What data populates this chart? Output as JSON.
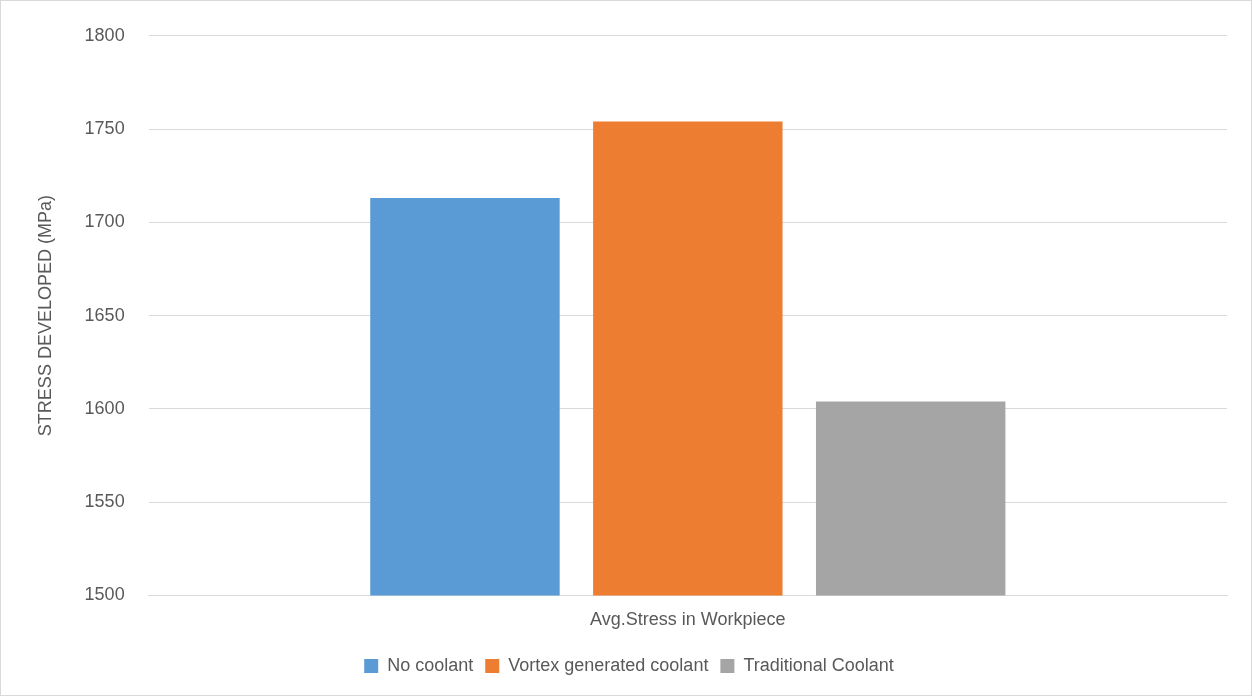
{
  "chart_data": {
    "type": "bar",
    "ylabel": "STRESS DEVELOPED (MPa)",
    "categories": [
      "Avg.Stress in Workpiece"
    ],
    "series": [
      {
        "name": "No coolant",
        "color": "#5b9bd5",
        "values": [
          1713
        ]
      },
      {
        "name": "Vortex generated coolant",
        "color": "#ed7d31",
        "values": [
          1754
        ]
      },
      {
        "name": "Traditional Coolant",
        "color": "#a5a5a5",
        "values": [
          1604
        ]
      }
    ],
    "ylim": [
      1500,
      1800
    ],
    "yticks": [
      1500,
      1550,
      1600,
      1650,
      1700,
      1750,
      1800
    ],
    "grid": "y",
    "legend": "bottom"
  }
}
